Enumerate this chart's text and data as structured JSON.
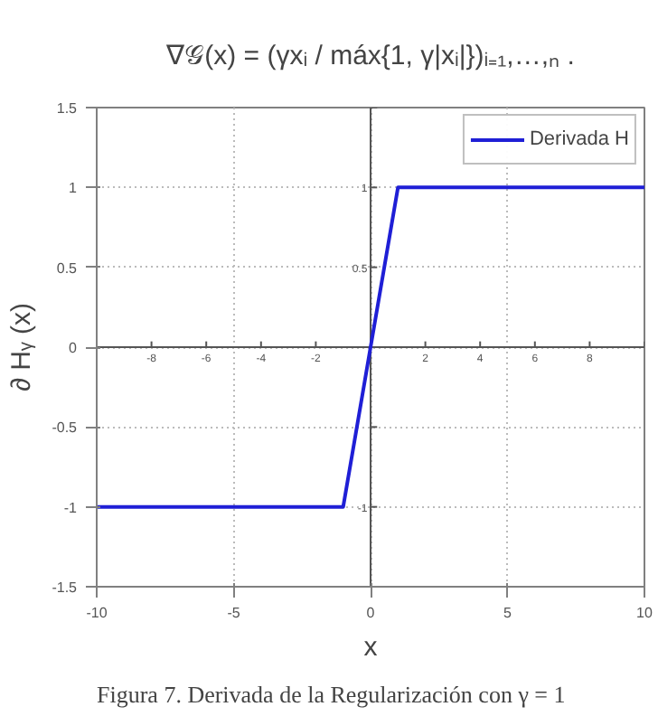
{
  "chart_data": {
    "type": "line",
    "title": "∇𝒢(x) = (γxᵢ / máx{1, γ|xᵢ|})ᵢ₌₁,…,ₙ .",
    "xlabel": "x",
    "ylabel": "∂ Hᵧ (x)",
    "series": [
      {
        "name": "Derivada H",
        "color": "#1f1fd6",
        "x": [
          -10,
          -1,
          1,
          10
        ],
        "values": [
          -1,
          -1,
          1,
          1
        ]
      }
    ],
    "xlim": [
      -10,
      10
    ],
    "xticks": [
      -10,
      -5,
      0,
      5,
      10
    ],
    "ylim": [
      -1.5,
      1.5
    ],
    "yticks": [
      -1.5,
      -1,
      -0.5,
      0,
      0.5,
      1,
      1.5
    ],
    "x2lim": [
      -10,
      10
    ],
    "x2ticks": [
      {
        "value": -10,
        "label": null
      },
      -8,
      -6,
      -4,
      -2,
      {
        "value": 0,
        "label": null
      },
      2,
      4,
      6,
      8,
      {
        "value": 10,
        "label": null
      }
    ],
    "y2lim": [
      -1.5,
      1.5
    ],
    "y2ticks": [
      {
        "value": -1.5,
        "label": null
      },
      -1,
      {
        "value": -0.5,
        "label": null
      },
      {
        "value": 0,
        "label": null
      },
      0.5,
      1,
      {
        "value": 1.5,
        "label": null
      }
    ],
    "grid": true,
    "legend": "top right",
    "line_style": "solid",
    "marker": "none",
    "annotations": [
      "Figura 7. Derivada de la Regularización con γ = 1"
    ]
  }
}
